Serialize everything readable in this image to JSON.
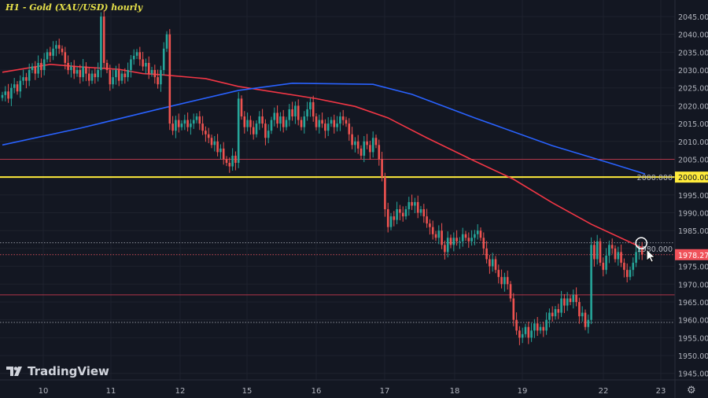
{
  "chart_data": {
    "type": "candlestick",
    "title": "H1 - Gold (XAU/USD) hourly",
    "ylim": [
      1942,
      2050
    ],
    "y_ticks": [
      "2045.000",
      "2040.000",
      "2035.000",
      "2030.000",
      "2025.000",
      "2020.000",
      "2015.000",
      "2010.000",
      "2005.000",
      "2000.000",
      "1995.000",
      "1990.000",
      "1985.000",
      "1980.000",
      "1975.000",
      "1970.000",
      "1965.000",
      "1960.000",
      "1955.000",
      "1950.000",
      "1945.000"
    ],
    "x_ticks": [
      "10",
      "11",
      "12",
      "15",
      "16",
      "17",
      "18",
      "19",
      "22",
      "23"
    ],
    "grid": true,
    "closes": [
      2023,
      2024,
      2022,
      2025,
      2026,
      2024,
      2027,
      2028,
      2027,
      2030,
      2031,
      2029,
      2032,
      2030,
      2033,
      2035,
      2034,
      2036,
      2037,
      2036,
      2035,
      2032,
      2030,
      2031,
      2029,
      2030,
      2028,
      2031,
      2029,
      2027,
      2029,
      2028,
      2030,
      2045,
      2032,
      2030,
      2026,
      2028,
      2030,
      2027,
      2029,
      2028,
      2030,
      2033,
      2034,
      2035,
      2033,
      2031,
      2032,
      2029,
      2030,
      2028,
      2026,
      2030,
      2036,
      2040,
      2015,
      2013,
      2016,
      2014,
      2015,
      2016,
      2014,
      2015,
      2016,
      2017,
      2015,
      2013,
      2012,
      2011,
      2009,
      2010,
      2007,
      2008,
      2005,
      2004,
      2003,
      2006,
      2004,
      2022,
      2017,
      2014,
      2016,
      2014,
      2012,
      2015,
      2017,
      2015,
      2011,
      2013,
      2016,
      2018,
      2015,
      2017,
      2014,
      2016,
      2019,
      2017,
      2020,
      2016,
      2014,
      2017,
      2019,
      2021,
      2017,
      2014,
      2016,
      2015,
      2013,
      2015,
      2016,
      2014,
      2015,
      2017,
      2016,
      2015,
      2012,
      2009,
      2010,
      2008,
      2006,
      2010,
      2009,
      2007,
      2011,
      2009,
      2005,
      2000,
      1991,
      1986,
      1989,
      1988,
      1991,
      1990,
      1989,
      1991,
      1993,
      1992,
      1993,
      1990,
      1991,
      1989,
      1987,
      1986,
      1984,
      1983,
      1985,
      1981,
      1979,
      1983,
      1981,
      1983,
      1982,
      1982,
      1984,
      1983,
      1982,
      1983,
      1984,
      1985,
      1983,
      1980,
      1977,
      1975,
      1977,
      1974,
      1972,
      1970,
      1972,
      1970,
      1966,
      1960,
      1957,
      1955,
      1956,
      1958,
      1955,
      1957,
      1959,
      1957,
      1958,
      1957,
      1960,
      1962,
      1961,
      1963,
      1962,
      1966,
      1964,
      1966,
      1965,
      1967,
      1965,
      1961,
      1962,
      1958,
      1960,
      1981,
      1977,
      1982,
      1976,
      1974,
      1978,
      1981,
      1980,
      1977,
      1979,
      1976,
      1974,
      1972,
      1974,
      1976,
      1979,
      1980,
      1978.27
    ],
    "moving_averages": [
      {
        "color": "#f23645",
        "points": [
          [
            0,
            2029.4
          ],
          [
            16,
            2031.6
          ],
          [
            26,
            2030.9
          ],
          [
            39,
            2030.2
          ],
          [
            47,
            2029
          ],
          [
            53,
            2028.7
          ],
          [
            68,
            2027.6
          ],
          [
            79,
            2025.4
          ],
          [
            105,
            2022
          ],
          [
            118,
            2019.8
          ],
          [
            129,
            2016.6
          ],
          [
            142,
            2011
          ],
          [
            158,
            2004.5
          ],
          [
            171,
            1999.4
          ],
          [
            184,
            1992.8
          ],
          [
            197,
            1986.8
          ],
          [
            214,
            1980.2
          ]
        ]
      },
      {
        "color": "#2962ff",
        "points": [
          [
            0,
            2009
          ],
          [
            26,
            2013.7
          ],
          [
            53,
            2019.2
          ],
          [
            79,
            2024.3
          ],
          [
            97,
            2026.3
          ],
          [
            124,
            2026
          ],
          [
            137,
            2023.2
          ],
          [
            158,
            2016.6
          ],
          [
            184,
            2008.8
          ],
          [
            203,
            2004
          ],
          [
            215,
            2000.9
          ]
        ]
      }
    ],
    "levels": [
      {
        "price": 2005,
        "color": "#b2374a",
        "style": "solid"
      },
      {
        "price": 2000,
        "color": "#ffeb3b",
        "style": "solid",
        "label": "2000.000"
      },
      {
        "price": 1981.6,
        "color": "#8a8e99",
        "style": "dotted"
      },
      {
        "price": 1978.27,
        "color": "#c74b55",
        "style": "dotted",
        "label": "1978.270"
      },
      {
        "price": 1967,
        "color": "#b2374a",
        "style": "solid"
      },
      {
        "price": 1959.3,
        "color": "#8a8e99",
        "style": "dotted"
      }
    ],
    "up_color": "#26a69a",
    "down_color": "#ef5350"
  },
  "brand": "TradingView"
}
